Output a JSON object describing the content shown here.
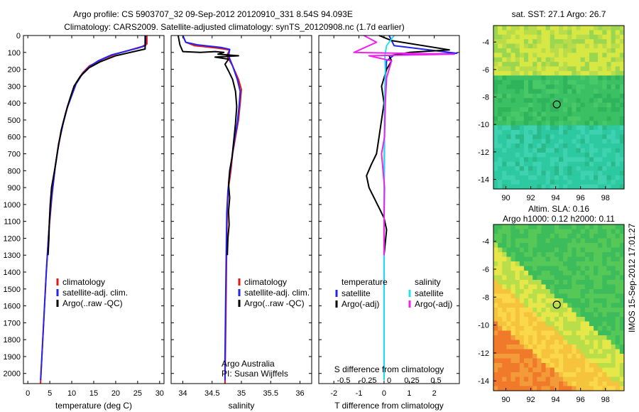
{
  "header": {
    "line1": "Argo profile: CS 5903707_32 09-Sep-2012 20120910_331 8.54S 94.093E",
    "line2": "Climatology: CARS2009. Satellite-adjusted climatology: synTS_20120908.nc (1.7d earlier)"
  },
  "colors": {
    "climatology": "#e8141b",
    "satellite": "#2424f0",
    "argo": "#000000",
    "salinity_sat": "#22e2f0",
    "salinity_argo": "#ee22ee"
  },
  "chart_data": [
    {
      "id": "temperature",
      "type": "line",
      "xlabel": "temperature (deg C)",
      "ylabel": "",
      "xlim": [
        -1,
        31
      ],
      "ylim": [
        2060,
        0
      ],
      "xticks": [
        "0",
        "5",
        "10",
        "15",
        "20",
        "25",
        "30"
      ],
      "yticks": [
        "0",
        "100",
        "200",
        "300",
        "400",
        "500",
        "600",
        "700",
        "800",
        "900",
        "1000",
        "1100",
        "1200",
        "1300",
        "1400",
        "1500",
        "1600",
        "1700",
        "1800",
        "1900",
        "2000"
      ],
      "legend": [
        "climatology",
        "satellite-adj. clim.",
        "Argo(..raw -QC)"
      ],
      "series": [
        {
          "name": "climatology",
          "color": "#e8141b",
          "points": [
            [
              27.1,
              0
            ],
            [
              27.1,
              50
            ],
            [
              26,
              65
            ],
            [
              20,
              110
            ],
            [
              17,
              140
            ],
            [
              14,
              180
            ],
            [
              12.5,
              220
            ],
            [
              11,
              280
            ],
            [
              10,
              350
            ],
            [
              9,
              420
            ],
            [
              8,
              520
            ],
            [
              7,
              640
            ],
            [
              6.2,
              780
            ],
            [
              5.5,
              950
            ],
            [
              4.8,
              1150
            ],
            [
              4.2,
              1400
            ],
            [
              3.7,
              1650
            ],
            [
              3.2,
              1900
            ],
            [
              2.9,
              2060
            ]
          ]
        },
        {
          "name": "satellite-adj. clim.",
          "color": "#2424f0",
          "points": [
            [
              26.8,
              0
            ],
            [
              26.8,
              60
            ],
            [
              25,
              75
            ],
            [
              19,
              115
            ],
            [
              16,
              150
            ],
            [
              14,
              185
            ],
            [
              12.5,
              225
            ],
            [
              11,
              285
            ],
            [
              10,
              355
            ],
            [
              9,
              425
            ],
            [
              8,
              525
            ],
            [
              7,
              645
            ],
            [
              6.2,
              785
            ],
            [
              5.4,
              960
            ],
            [
              4.8,
              1150
            ],
            [
              4.2,
              1400
            ],
            [
              3.7,
              1650
            ],
            [
              3.2,
              1900
            ],
            [
              2.9,
              2040
            ]
          ]
        },
        {
          "name": "Argo(..raw -QC)",
          "color": "#000000",
          "points": [
            [
              26.7,
              0
            ],
            [
              26.7,
              80
            ],
            [
              20,
              120
            ],
            [
              16.5,
              155
            ],
            [
              14,
              190
            ],
            [
              12,
              240
            ],
            [
              10.5,
              300
            ],
            [
              9.5,
              380
            ],
            [
              8.6,
              460
            ],
            [
              7.6,
              560
            ],
            [
              6.8,
              680
            ],
            [
              6.2,
              780
            ],
            [
              5.4,
              900
            ],
            [
              5.1,
              1000
            ],
            [
              4.9,
              1100
            ],
            [
              4.8,
              1200
            ],
            [
              4.6,
              1300
            ]
          ]
        }
      ]
    },
    {
      "id": "salinity",
      "type": "line",
      "xlabel": "salinity",
      "xlim": [
        33.8,
        36.2
      ],
      "ylim": [
        2060,
        0
      ],
      "xticks": [
        "34",
        "34.5",
        "35",
        "35.5",
        "36"
      ],
      "legend": [
        "climatology",
        "satellite-adj. clim.",
        "Argo(..raw -QC)"
      ],
      "annotations": [
        "Argo Australia",
        "PI: Susan Wijffels"
      ],
      "series": [
        {
          "name": "climatology",
          "color": "#e8141b",
          "points": [
            [
              34.0,
              0
            ],
            [
              34.05,
              40
            ],
            [
              34.2,
              60
            ],
            [
              34.6,
              75
            ],
            [
              34.8,
              85
            ],
            [
              34.75,
              120
            ],
            [
              34.85,
              180
            ],
            [
              34.95,
              260
            ],
            [
              35.0,
              320
            ],
            [
              34.98,
              400
            ],
            [
              34.95,
              500
            ],
            [
              34.9,
              600
            ],
            [
              34.85,
              700
            ],
            [
              34.82,
              800
            ],
            [
              34.78,
              900
            ],
            [
              34.76,
              1000
            ],
            [
              34.75,
              1200
            ],
            [
              34.74,
              1500
            ],
            [
              34.73,
              1800
            ],
            [
              34.72,
              2060
            ]
          ]
        },
        {
          "name": "satellite-adj. clim.",
          "color": "#2424f0",
          "points": [
            [
              34.0,
              0
            ],
            [
              34.05,
              40
            ],
            [
              34.25,
              55
            ],
            [
              34.65,
              70
            ],
            [
              34.8,
              82
            ],
            [
              34.78,
              120
            ],
            [
              34.85,
              180
            ],
            [
              34.93,
              260
            ],
            [
              34.98,
              330
            ],
            [
              34.96,
              420
            ],
            [
              34.93,
              520
            ],
            [
              34.88,
              620
            ],
            [
              34.84,
              720
            ],
            [
              34.8,
              820
            ],
            [
              34.77,
              920
            ],
            [
              34.75,
              1050
            ],
            [
              34.74,
              1300
            ],
            [
              34.73,
              1600
            ],
            [
              34.72,
              1900
            ],
            [
              34.72,
              2040
            ]
          ]
        },
        {
          "name": "Argo(..raw -QC)",
          "color": "#000000",
          "points": [
            [
              33.92,
              0
            ],
            [
              33.95,
              55
            ],
            [
              34.0,
              95
            ],
            [
              34.3,
              100
            ],
            [
              34.55,
              95
            ],
            [
              34.7,
              100
            ],
            [
              34.6,
              110
            ],
            [
              34.95,
              120
            ],
            [
              34.55,
              128
            ],
            [
              34.78,
              140
            ],
            [
              34.72,
              170
            ],
            [
              34.78,
              210
            ],
            [
              34.85,
              260
            ],
            [
              34.9,
              330
            ],
            [
              34.92,
              420
            ],
            [
              34.9,
              520
            ],
            [
              34.87,
              620
            ],
            [
              34.84,
              720
            ],
            [
              34.8,
              800
            ],
            [
              34.78,
              880
            ],
            [
              34.8,
              960
            ],
            [
              34.78,
              1040
            ],
            [
              34.79,
              1120
            ],
            [
              34.77,
              1200
            ],
            [
              34.76,
              1300
            ]
          ]
        }
      ]
    },
    {
      "id": "difference",
      "type": "line",
      "xlabel": "T difference from climatology",
      "x2label": "S difference from climatology",
      "xlim": [
        -2.6,
        3
      ],
      "ylim": [
        2060,
        0
      ],
      "xticks": [
        "-2",
        "-1",
        "0",
        "1",
        "2"
      ],
      "x2ticks": [
        "-0.5",
        "-0.25",
        "0",
        "0.25",
        "0.5"
      ],
      "legend_headers": [
        "temperature",
        "salinity"
      ],
      "legend": [
        "satellite",
        "Argo(-adj)",
        "satellite",
        "Argo(-adj)"
      ],
      "series": [
        {
          "name": "satellite",
          "color": "#2424f0",
          "points": [
            [
              0.2,
              0
            ],
            [
              0.4,
              60
            ],
            [
              2.9,
              105
            ],
            [
              0.4,
              115
            ],
            [
              0.1,
              150
            ],
            [
              0.05,
              250
            ],
            [
              0.02,
              500
            ],
            [
              0.0,
              1000
            ],
            [
              0.0,
              1500
            ],
            [
              0.0,
              2040
            ]
          ]
        },
        {
          "name": "Argo(-adj)",
          "color": "#000000",
          "points": [
            [
              -0.2,
              0
            ],
            [
              0.3,
              30
            ],
            [
              2.6,
              85
            ],
            [
              1.0,
              100
            ],
            [
              0.2,
              120
            ],
            [
              0.3,
              150
            ],
            [
              0.1,
              200
            ],
            [
              -0.1,
              300
            ],
            [
              0.0,
              400
            ],
            [
              -0.1,
              500
            ],
            [
              -0.2,
              600
            ],
            [
              -0.3,
              700
            ],
            [
              -0.5,
              760
            ],
            [
              -0.7,
              830
            ],
            [
              -0.6,
              900
            ],
            [
              -0.4,
              960
            ],
            [
              -0.2,
              1020
            ],
            [
              0.0,
              1080
            ],
            [
              0.1,
              1150
            ],
            [
              0.0,
              1300
            ]
          ]
        },
        {
          "name": "satellite",
          "color": "#22e2f0",
          "points": [
            [
              0.4,
              0
            ],
            [
              0.1,
              60
            ],
            [
              0.03,
              120
            ],
            [
              0.05,
              200
            ],
            [
              0.02,
              400
            ],
            [
              0.01,
              700
            ],
            [
              0.0,
              1000
            ],
            [
              0.0,
              1500
            ],
            [
              0.0,
              2040
            ]
          ]
        },
        {
          "name": "Argo(-adj)",
          "color": "#ee22ee",
          "points": [
            [
              -0.8,
              0
            ],
            [
              -0.3,
              40
            ],
            [
              -1.2,
              100
            ],
            [
              2.8,
              110
            ],
            [
              -0.6,
              120
            ],
            [
              0.3,
              150
            ],
            [
              0.1,
              250
            ],
            [
              0.05,
              400
            ],
            [
              0.02,
              600
            ],
            [
              -0.1,
              700
            ],
            [
              0.02,
              900
            ],
            [
              0.0,
              1100
            ],
            [
              0.0,
              1300
            ]
          ]
        }
      ]
    }
  ],
  "maps": [
    {
      "id": "sst-map",
      "title_lines": [
        "sat. SST: 27.1  Argo: 26.7"
      ],
      "xlim": [
        89,
        99.5
      ],
      "ylim": [
        -14.7,
        -2.8
      ],
      "xticks": [
        "90",
        "92",
        "94",
        "96",
        "98"
      ],
      "yticks": [
        "-4",
        "-6",
        "-8",
        "-10",
        "-12",
        "-14"
      ],
      "float_position": [
        94.09,
        -8.54
      ]
    },
    {
      "id": "sla-map",
      "title_lines": [
        "Altim. SLA: 0.16",
        "Argo h1000: 0.12 h2000: 0.11"
      ],
      "xlim": [
        89,
        99.5
      ],
      "ylim": [
        -14.7,
        -2.8
      ],
      "xticks": [
        "90",
        "92",
        "94",
        "96",
        "98"
      ],
      "yticks": [
        "-4",
        "-6",
        "-8",
        "-10",
        "-12",
        "-14"
      ],
      "float_position": [
        94.09,
        -8.54
      ]
    }
  ],
  "side_stamp": "IMOS 15-Sep-2012 17:01:27"
}
